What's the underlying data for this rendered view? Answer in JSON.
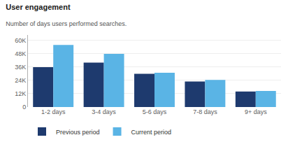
{
  "chart_data": {
    "type": "bar",
    "title": "User engagement",
    "subtitle": "Number of days users performed searches.",
    "categories": [
      "1-2 days",
      "3-4 days",
      "5-6 days",
      "7-8 days",
      "9+ days"
    ],
    "series": [
      {
        "name": "Previous period",
        "color": "#1e3a6e",
        "values": [
          36000,
          40000,
          30000,
          23000,
          14000
        ]
      },
      {
        "name": "Current period",
        "color": "#5ab4e5",
        "values": [
          56000,
          48000,
          31000,
          24500,
          14500
        ]
      }
    ],
    "ylim": [
      0,
      65000
    ],
    "yticks": [
      0,
      {
        "value": 12000,
        "label": "12K"
      },
      {
        "value": 24000,
        "label": "24K"
      },
      {
        "value": 36000,
        "label": "36K"
      },
      {
        "value": 48000,
        "label": "48K"
      },
      {
        "value": 60000,
        "label": "60K"
      }
    ],
    "grid": true,
    "legend": "lower left"
  }
}
